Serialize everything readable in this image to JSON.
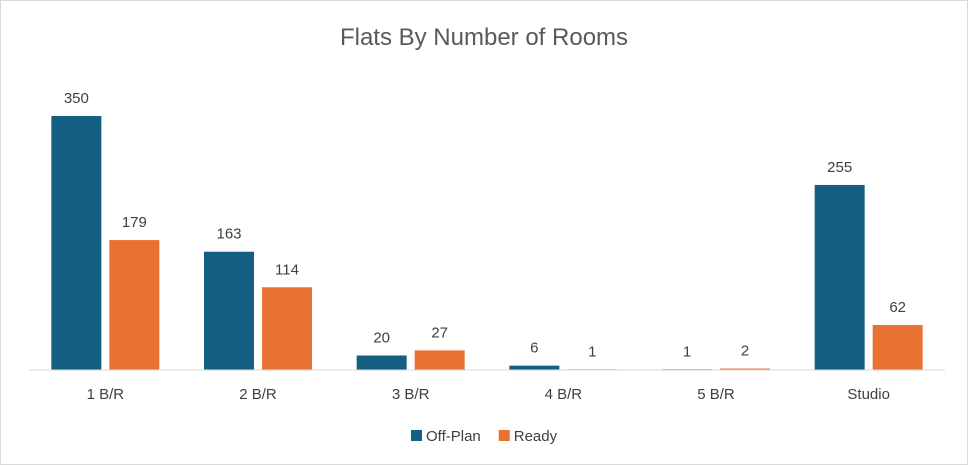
{
  "chart_data": {
    "type": "bar",
    "title": "Flats By Number of Rooms",
    "categories": [
      "1 B/R",
      "2 B/R",
      "3 B/R",
      "4 B/R",
      "5 B/R",
      "Studio"
    ],
    "series": [
      {
        "name": "Off-Plan",
        "color": "#156082",
        "values": [
          350,
          163,
          20,
          6,
          1,
          255
        ]
      },
      {
        "name": "Ready",
        "color": "#E97132",
        "values": [
          179,
          114,
          27,
          1,
          2,
          62
        ]
      }
    ],
    "ylim": [
      0,
      350
    ],
    "grid": false,
    "legend": "bottom",
    "data_labels": true
  }
}
